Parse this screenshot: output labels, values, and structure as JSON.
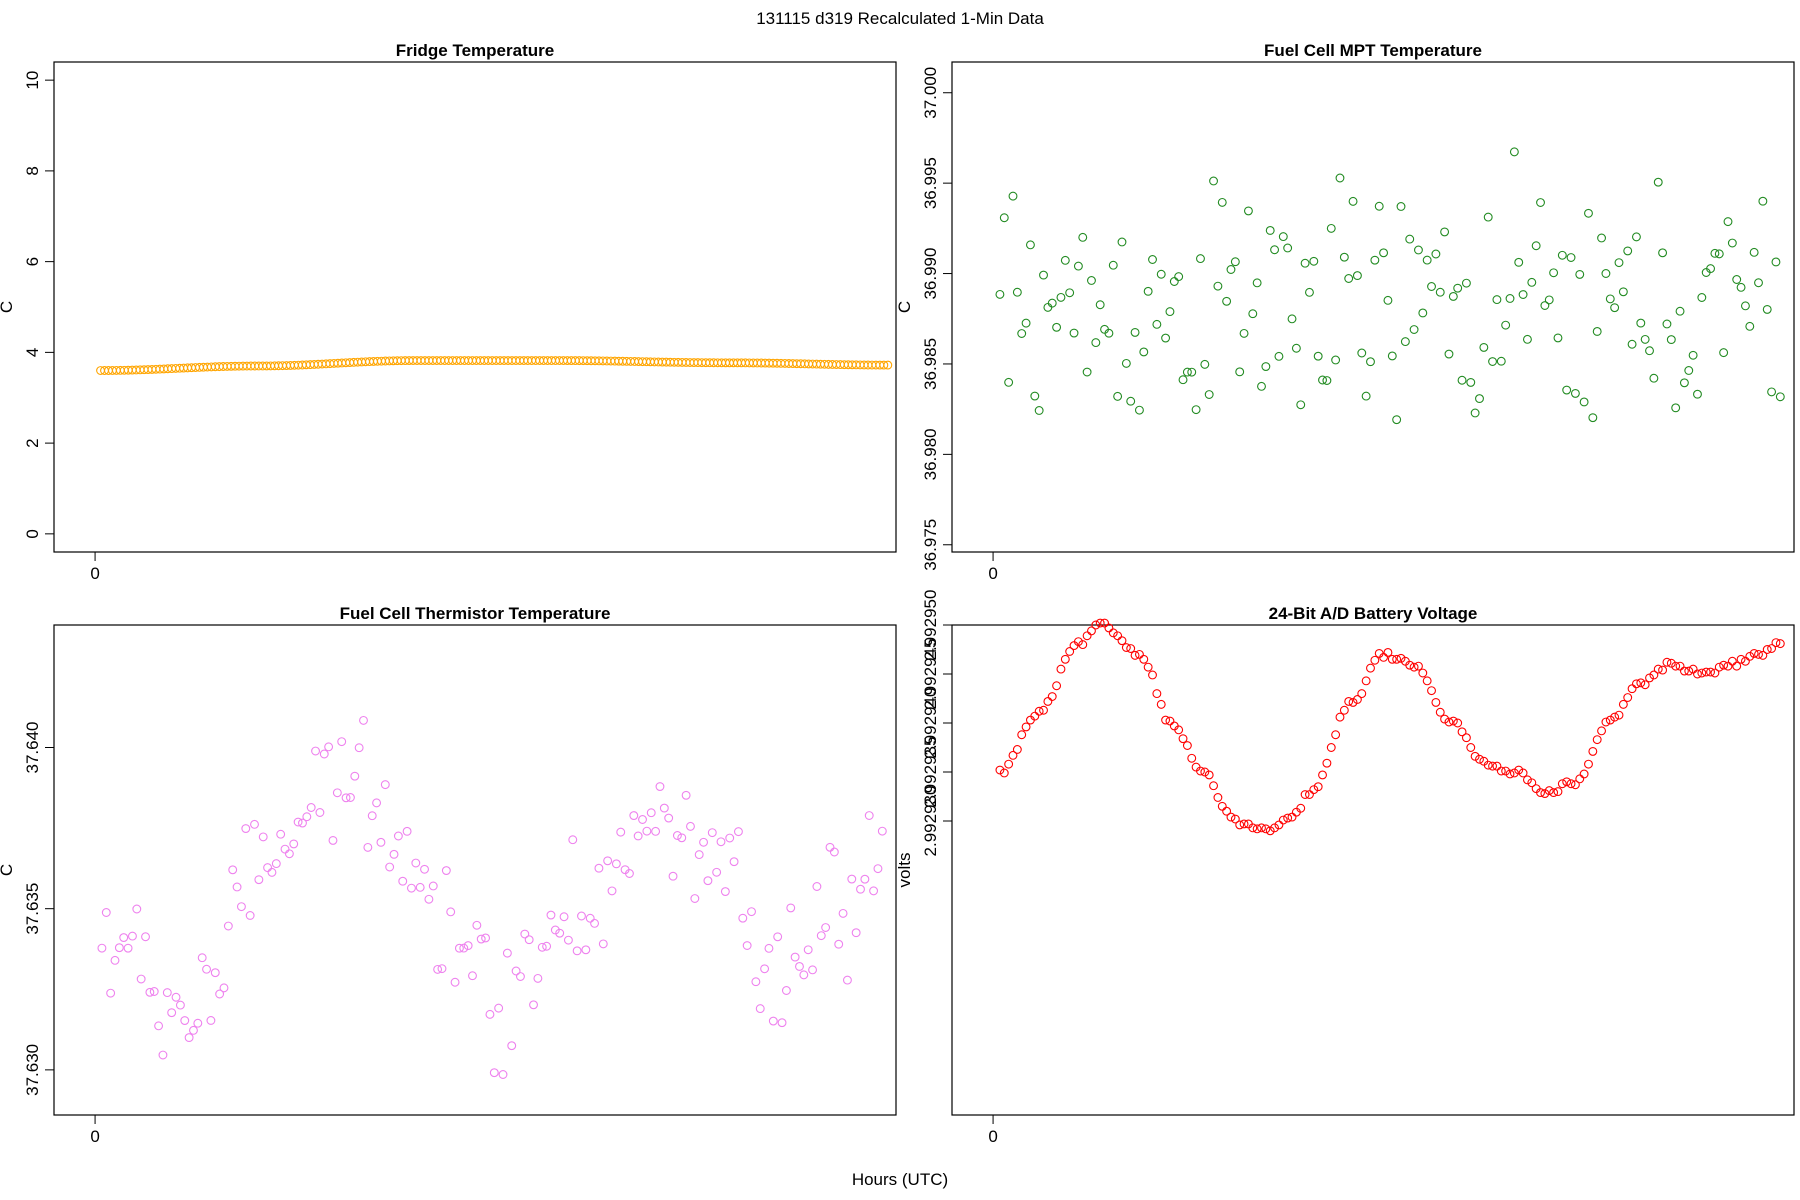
{
  "figure": {
    "title": "131115   d319   Recalculated 1-Min Data",
    "xlabel": "Hours (UTC)"
  },
  "chart_data": [
    {
      "type": "scatter",
      "title": "Fridge Temperature",
      "ylabel": "C",
      "xlim": [
        -0.6,
        11.7
      ],
      "ylim": [
        -0.4,
        10.4
      ],
      "xticks": [
        0
      ],
      "yticks": [
        0,
        2,
        4,
        6,
        8,
        10
      ],
      "ytick_labels": [
        "0",
        "2",
        "4",
        "6",
        "8",
        "10"
      ],
      "color": "#FFA500",
      "x_range": [
        0.08,
        11.58
      ],
      "n_points": 200,
      "series_shape": "smooth",
      "y_knots": [
        [
          0,
          3.6
        ],
        [
          0.2,
          3.7
        ],
        [
          0.4,
          3.82
        ],
        [
          0.58,
          3.82
        ],
        [
          0.8,
          3.77
        ],
        [
          1,
          3.72
        ]
      ],
      "x": [],
      "y": []
    },
    {
      "type": "scatter",
      "title": "Fuel Cell MPT Temperature",
      "ylabel": "C",
      "xlim": [
        -0.6,
        11.7
      ],
      "ylim": [
        36.9746,
        37.0017
      ],
      "xticks": [
        0
      ],
      "yticks": [
        36.975,
        36.98,
        36.985,
        36.99,
        36.995,
        37.0
      ],
      "ytick_labels": [
        "36.975",
        "36.980",
        "36.985",
        "36.990",
        "36.995",
        "37.000"
      ],
      "color": "#228B22",
      "x_range": [
        0.1,
        11.5
      ],
      "n_points": 180,
      "series_shape": "noise",
      "y_center": 36.988,
      "y_spread": 0.0058,
      "y_bounds": [
        36.9755,
        37.0008
      ],
      "x": [],
      "y": []
    },
    {
      "type": "scatter",
      "title": "Fuel Cell Thermistor Temperature",
      "ylabel": "C",
      "xlim": [
        -0.6,
        11.7
      ],
      "ylim": [
        37.6286,
        37.6438
      ],
      "xticks": [
        0
      ],
      "yticks": [
        37.63,
        37.635,
        37.64
      ],
      "ytick_labels": [
        "37.630",
        "37.635",
        "37.640"
      ],
      "color": "#EE82EE",
      "x_range": [
        0.1,
        11.5
      ],
      "n_points": 180,
      "series_shape": "noisy-knots",
      "y_spread": 0.0026,
      "y_bounds": [
        37.6288,
        37.6434
      ],
      "y_knots": [
        [
          0,
          37.634
        ],
        [
          0.1,
          37.6318
        ],
        [
          0.25,
          37.6375
        ],
        [
          0.33,
          37.6392
        ],
        [
          0.45,
          37.6345
        ],
        [
          0.5,
          37.632
        ],
        [
          0.6,
          37.635
        ],
        [
          0.72,
          37.6375
        ],
        [
          0.8,
          37.6362
        ],
        [
          0.85,
          37.6322
        ],
        [
          0.95,
          37.6348
        ],
        [
          1,
          37.6358
        ]
      ],
      "x": [],
      "y": []
    },
    {
      "type": "scatter",
      "title": "24-Bit A/D Battery Voltage",
      "ylabel": "volts",
      "xlim": [
        -0.6,
        11.7
      ],
      "ylim": [
        2.9929,
        2.99295
      ],
      "xticks": [
        0
      ],
      "yticks": [
        2.99293,
        2.992935,
        2.99294,
        2.992945,
        2.99295
      ],
      "ytick_labels": [
        "2.992930",
        "2.992935",
        "2.992940",
        "2.992945",
        "2.992950"
      ],
      "color": "#FF0000",
      "x_range": [
        0.1,
        11.5
      ],
      "n_points": 180,
      "series_shape": "smooth-noisy",
      "y_spread": 6e-07,
      "y_knots": [
        [
          0,
          2.992935
        ],
        [
          0.05,
          2.992941
        ],
        [
          0.1,
          2.992948
        ],
        [
          0.13,
          2.99295
        ],
        [
          0.18,
          2.992947
        ],
        [
          0.22,
          2.99294
        ],
        [
          0.26,
          2.992935
        ],
        [
          0.3,
          2.99293
        ],
        [
          0.34,
          2.992929
        ],
        [
          0.37,
          2.99293
        ],
        [
          0.4,
          2.992933
        ],
        [
          0.45,
          2.992942
        ],
        [
          0.49,
          2.992947
        ],
        [
          0.53,
          2.992946
        ],
        [
          0.58,
          2.99294
        ],
        [
          0.62,
          2.992936
        ],
        [
          0.66,
          2.992935
        ],
        [
          0.7,
          2.992933
        ],
        [
          0.74,
          2.992934
        ],
        [
          0.78,
          2.99294
        ],
        [
          0.82,
          2.992944
        ],
        [
          0.86,
          2.992946
        ],
        [
          0.9,
          2.992945
        ],
        [
          0.94,
          2.992946
        ],
        [
          0.97,
          2.992947
        ],
        [
          1,
          2.992948
        ]
      ],
      "x": [],
      "y": []
    }
  ]
}
